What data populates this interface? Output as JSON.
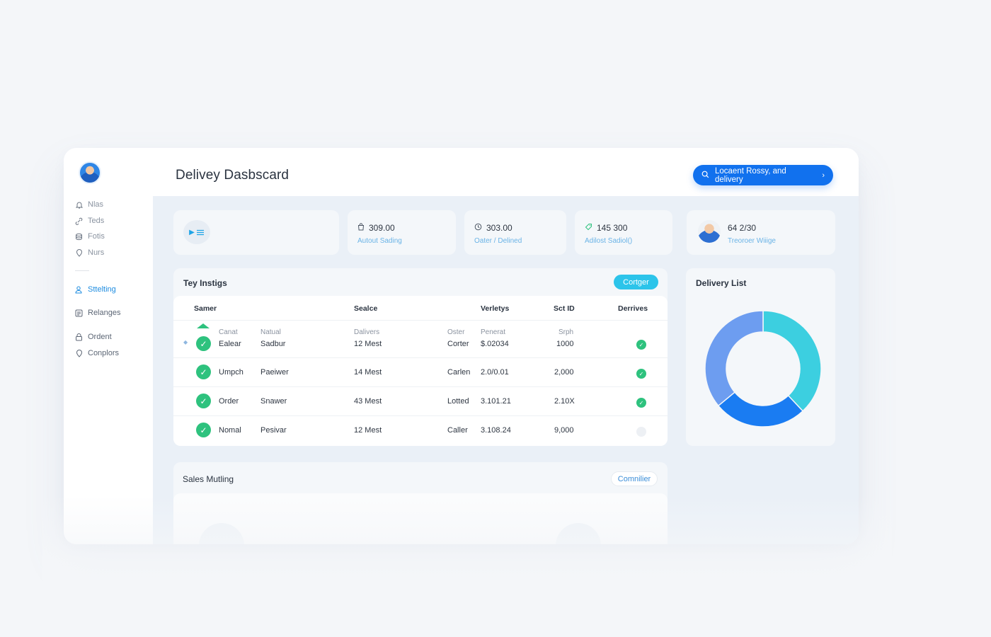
{
  "app": {
    "title": "Delivey Dasbscard",
    "cta_label": "Locaent Rossy, and delivery",
    "cta_icon": "search-icon"
  },
  "sidebar": {
    "items": [
      {
        "label": "Nlas",
        "icon": "bell-icon"
      },
      {
        "label": "Teds",
        "icon": "link-icon"
      },
      {
        "label": "Fotis",
        "icon": "database-icon"
      },
      {
        "label": "Nurs",
        "icon": "location-pin-icon"
      },
      {
        "label": "Sttelting",
        "icon": "user-icon",
        "active": true
      },
      {
        "label": "Relanges",
        "icon": "list-icon"
      },
      {
        "label": "Ordent",
        "icon": "lock-icon"
      },
      {
        "label": "Conplors",
        "icon": "location-pin-icon"
      }
    ]
  },
  "stats": [
    {
      "value": "309.00",
      "label": "Autout Sading",
      "icon": "bag-icon"
    },
    {
      "value": "303.00",
      "label": "Oater / Delined",
      "icon": "clock-icon"
    },
    {
      "value": "145 300",
      "label": "Adilost Sadiol()",
      "icon": "tag-icon"
    },
    {
      "value": "64 2/30",
      "label": "Treoroer Wiiige",
      "icon": "avatar-icon"
    }
  ],
  "insights": {
    "title": "Tey Instigs",
    "button_label": "Cortger",
    "columns": [
      "Samer",
      "Sealce",
      "Verletys",
      "Sct ID",
      "Derrives"
    ],
    "rows": [
      {
        "sub1": "Canat",
        "name": "Ealear",
        "sub2": "Natual",
        "service": "Sadbur",
        "sub3": "Dalivers",
        "qty": "12 Mest",
        "sub4": "Oster",
        "status": "Corter",
        "sub5": "Penerat",
        "amount": "$.02034",
        "sub6": "Srph",
        "id": "1000",
        "done": true
      },
      {
        "name": "Umpch",
        "service": "Paeiwer",
        "qty": "14 Mest",
        "status": "Carlen",
        "amount": "2.0/0.01",
        "id": "2,000",
        "done": true
      },
      {
        "name": "Order",
        "service": "Snawer",
        "qty": "43 Mest",
        "status": "Lotted",
        "amount": "3.101.21",
        "id": "2.10X",
        "done": true
      },
      {
        "name": "Nomal",
        "service": "Pesivar",
        "qty": "12 Mest",
        "status": "Caller",
        "amount": "3.108.24",
        "id": "9,000",
        "done": false
      }
    ]
  },
  "delivery_list": {
    "title": "Delivery List",
    "segments": [
      {
        "value": 38,
        "color": "#3ccfe0"
      },
      {
        "value": 26,
        "color": "#1a7cf2"
      },
      {
        "value": 36,
        "color": "#6d9df0"
      }
    ]
  },
  "sales": {
    "title": "Sales Mutling",
    "button_label": "Comnilier"
  }
}
